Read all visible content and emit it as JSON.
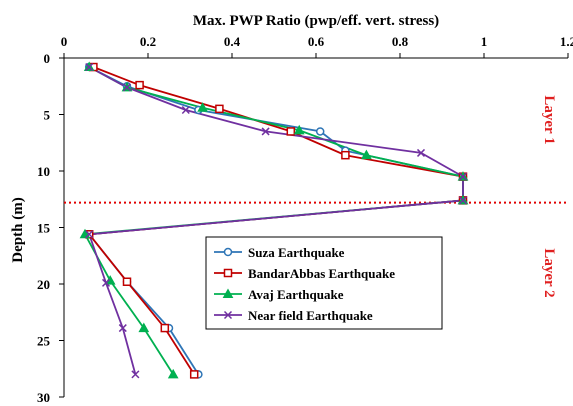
{
  "chart_data": {
    "type": "line",
    "title": "Max. PWP Ratio (pwp/eff. vert. stress)",
    "xlabel": "Max. PWP Ratio (pwp/eff. vert. stress)",
    "ylabel": "Depth (m)",
    "xlim": [
      0,
      1.2
    ],
    "ylim": [
      0,
      30
    ],
    "x_axis_position": "top",
    "y_axis_reversed": true,
    "x_ticks": [
      "0",
      "0.2",
      "0.4",
      "0.6",
      "0.8",
      "1",
      "1.2"
    ],
    "y_ticks": [
      "0",
      "5",
      "10",
      "15",
      "20",
      "25",
      "30"
    ],
    "grid": false,
    "legend_placement": "center-right",
    "series": [
      {
        "name": "Suza Earthquake",
        "color": "#2e75b6",
        "marker": "circle",
        "points": [
          [
            0.06,
            0.8
          ],
          [
            0.15,
            2.5
          ],
          [
            0.32,
            4.6
          ],
          [
            0.61,
            6.5
          ],
          [
            0.67,
            8.2
          ],
          [
            0.95,
            10.5
          ],
          [
            0.95,
            12.6
          ],
          [
            0.06,
            15.6
          ],
          [
            0.15,
            19.8
          ],
          [
            0.25,
            23.9
          ],
          [
            0.32,
            28.0
          ]
        ]
      },
      {
        "name": "BandarAbbas Earthquake",
        "color": "#c00000",
        "marker": "square",
        "points": [
          [
            0.07,
            0.8
          ],
          [
            0.18,
            2.4
          ],
          [
            0.37,
            4.5
          ],
          [
            0.54,
            6.5
          ],
          [
            0.67,
            8.6
          ],
          [
            0.95,
            10.5
          ],
          [
            0.95,
            12.6
          ],
          [
            0.06,
            15.6
          ],
          [
            0.15,
            19.8
          ],
          [
            0.24,
            23.9
          ],
          [
            0.31,
            28.0
          ]
        ]
      },
      {
        "name": "Avaj Earthquake",
        "color": "#00b050",
        "marker": "triangle",
        "points": [
          [
            0.06,
            0.8
          ],
          [
            0.15,
            2.6
          ],
          [
            0.33,
            4.4
          ],
          [
            0.56,
            6.4
          ],
          [
            0.72,
            8.6
          ],
          [
            0.95,
            10.5
          ],
          [
            0.95,
            12.6
          ],
          [
            0.05,
            15.6
          ],
          [
            0.11,
            19.7
          ],
          [
            0.19,
            23.9
          ],
          [
            0.26,
            28.0
          ]
        ]
      },
      {
        "name": "Near field Earthquake",
        "color": "#7030a0",
        "marker": "x",
        "points": [
          [
            0.06,
            0.8
          ],
          [
            0.15,
            2.6
          ],
          [
            0.29,
            4.6
          ],
          [
            0.48,
            6.5
          ],
          [
            0.85,
            8.4
          ],
          [
            0.95,
            10.5
          ],
          [
            0.95,
            12.6
          ],
          [
            0.06,
            15.6
          ],
          [
            0.1,
            19.9
          ],
          [
            0.14,
            23.9
          ],
          [
            0.17,
            28.0
          ]
        ]
      }
    ],
    "annotations": [
      {
        "text": "Layer  1",
        "color": "#e02020",
        "position": "right-upper"
      },
      {
        "text": "Layer 2",
        "color": "#e02020",
        "position": "right-lower"
      }
    ],
    "reference_lines": [
      {
        "type": "horizontal",
        "y": 12.8,
        "style": "dotted",
        "color": "#e00000"
      }
    ]
  }
}
